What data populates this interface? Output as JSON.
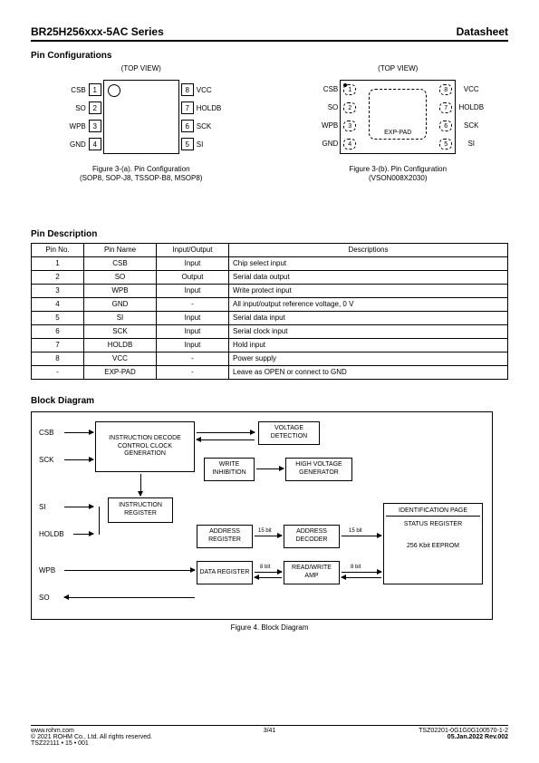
{
  "header": {
    "title": "BR25H256xxx-5AC Series",
    "doctype": "Datasheet"
  },
  "pin_config": {
    "section_title": "Pin Configurations",
    "top_view": "(TOP VIEW)",
    "pkg_a": {
      "caption_l1": "Figure 3-(a). Pin Configuration",
      "caption_l2": "(SOP8, SOP-J8, TSSOP-B8, MSOP8)",
      "left": [
        {
          "n": "1",
          "lbl": "CSB"
        },
        {
          "n": "2",
          "lbl": "SO"
        },
        {
          "n": "3",
          "lbl": "WPB"
        },
        {
          "n": "4",
          "lbl": "GND"
        }
      ],
      "right": [
        {
          "n": "8",
          "lbl": "VCC"
        },
        {
          "n": "7",
          "lbl": "HOLDB"
        },
        {
          "n": "6",
          "lbl": "SCK"
        },
        {
          "n": "5",
          "lbl": "SI"
        }
      ]
    },
    "pkg_b": {
      "caption_l1": "Figure 3-(b). Pin Configuration",
      "caption_l2": "(VSON008X2030)",
      "pad": "EXP-PAD",
      "left": [
        {
          "n": "1",
          "lbl": "CSB"
        },
        {
          "n": "2",
          "lbl": "SO"
        },
        {
          "n": "3",
          "lbl": "WPB"
        },
        {
          "n": "4",
          "lbl": "GND"
        }
      ],
      "right": [
        {
          "n": "8",
          "lbl": "VCC"
        },
        {
          "n": "7",
          "lbl": "HOLDB"
        },
        {
          "n": "6",
          "lbl": "SCK"
        },
        {
          "n": "5",
          "lbl": "SI"
        }
      ]
    }
  },
  "pin_desc": {
    "section_title": "Pin Description",
    "headers": [
      "Pin No.",
      "Pin Name",
      "Input/Output",
      "Descriptions"
    ],
    "rows": [
      [
        "1",
        "CSB",
        "Input",
        "Chip select input"
      ],
      [
        "2",
        "SO",
        "Output",
        "Serial data output"
      ],
      [
        "3",
        "WPB",
        "Input",
        "Write protect input"
      ],
      [
        "4",
        "GND",
        "-",
        "All input/output reference voltage, 0 V"
      ],
      [
        "5",
        "SI",
        "Input",
        "Serial data input"
      ],
      [
        "6",
        "SCK",
        "Input",
        "Serial clock input"
      ],
      [
        "7",
        "HOLDB",
        "Input",
        "Hold input"
      ],
      [
        "8",
        "VCC",
        "-",
        "Power supply"
      ],
      [
        "-",
        "EXP-PAD",
        "-",
        "Leave as OPEN or connect to GND"
      ]
    ]
  },
  "block_diagram": {
    "section_title": "Block Diagram",
    "caption": "Figure 4. Block Diagram",
    "inputs": [
      "CSB",
      "SCK",
      "SI",
      "HOLDB",
      "WPB",
      "SO"
    ],
    "boxes": {
      "inst_decode": "INSTRUCTION DECODE CONTROL CLOCK GENERATION",
      "volt_det": "VOLTAGE DETECTION",
      "write_inh": "WRITE INHIBITION",
      "hv_gen": "HIGH VOLTAGE GENERATOR",
      "inst_reg": "INSTRUCTION REGISTER",
      "addr_reg": "ADDRESS REGISTER",
      "addr_dec": "ADDRESS DECODER",
      "data_reg": "DATA REGISTER",
      "rw_amp": "READ/WRITE AMP",
      "id_page": "IDENTIFICATION PAGE",
      "status_reg": "STATUS REGISTER",
      "eeprom": "256 Kbit EEPROM"
    },
    "bus15": "15 bit",
    "bus8": "8 bit"
  },
  "footer": {
    "url": "www.rohm.com",
    "copyright": "© 2021 ROHM Co., Ltd. All rights reserved.",
    "tsz_small": "TSZ22111 • 15 • 001",
    "page": "3/41",
    "doc_code": "TSZ02201-0G1G0G100570-1-2",
    "date_rev": "05.Jan.2022 Rev.002"
  }
}
